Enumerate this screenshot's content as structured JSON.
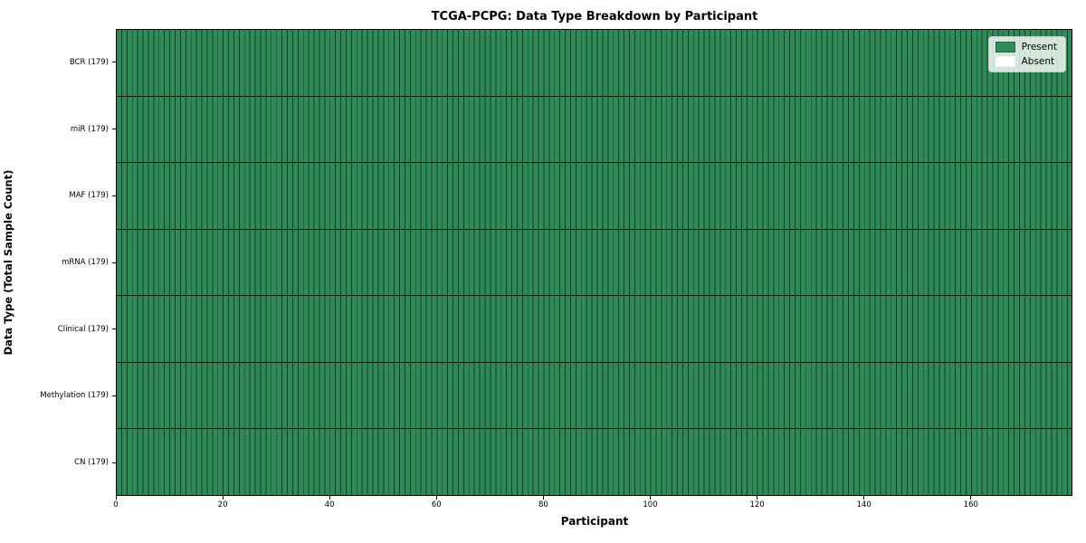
{
  "chart_data": {
    "type": "heatmap",
    "title": "TCGA-PCPG: Data Type Breakdown by Participant",
    "xlabel": "Participant",
    "ylabel": "Data Type (Total Sample Count)",
    "x_range": [
      0,
      179
    ],
    "x_ticks": [
      0,
      20,
      40,
      60,
      80,
      100,
      120,
      140,
      160
    ],
    "participants": 179,
    "grid": true,
    "legend_position": "upper right",
    "rows": [
      {
        "label": "BCR (179)",
        "data_type": "BCR",
        "total_samples": 179,
        "present_count": 179,
        "absent_count": 0
      },
      {
        "label": "miR (179)",
        "data_type": "miR",
        "total_samples": 179,
        "present_count": 179,
        "absent_count": 0
      },
      {
        "label": "MAF (179)",
        "data_type": "MAF",
        "total_samples": 179,
        "present_count": 179,
        "absent_count": 0
      },
      {
        "label": "mRNA (179)",
        "data_type": "mRNA",
        "total_samples": 179,
        "present_count": 179,
        "absent_count": 0
      },
      {
        "label": "Clinical (179)",
        "data_type": "Clinical",
        "total_samples": 179,
        "present_count": 179,
        "absent_count": 0
      },
      {
        "label": "Methylation (179)",
        "data_type": "Methylation",
        "total_samples": 179,
        "present_count": 179,
        "absent_count": 0
      },
      {
        "label": "CN (179)",
        "data_type": "CN",
        "total_samples": 179,
        "present_count": 179,
        "absent_count": 0
      }
    ],
    "legend": [
      {
        "label": "Present",
        "color": "#2e8b57"
      },
      {
        "label": "Absent",
        "color": "#ffffff"
      }
    ],
    "colors": {
      "present": "#2e8b57",
      "absent": "#ffffff",
      "cell_border": "rgba(0,0,0,0.55)",
      "row_border": "rgba(0,0,0,0.85)",
      "spine": "#000000",
      "legend_border": "#cccccc"
    }
  }
}
